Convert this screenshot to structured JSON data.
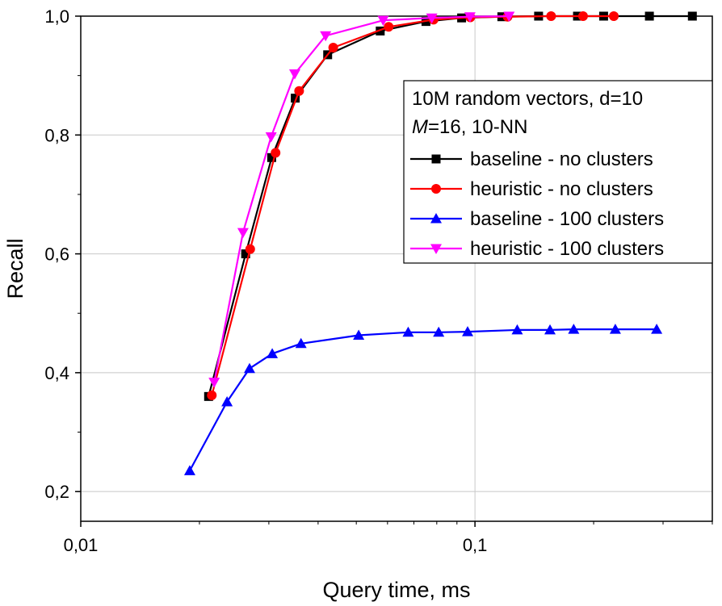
{
  "chart_data": {
    "type": "line",
    "xlabel": "Query time, ms",
    "ylabel": "Recall",
    "x_scale": "log",
    "xlim": [
      0.01,
      0.4
    ],
    "ylim": [
      0.15,
      1.0
    ],
    "x_ticks": [
      {
        "value": 0.01,
        "label": "0,01"
      },
      {
        "value": 0.1,
        "label": "0,1"
      }
    ],
    "y_ticks": [
      {
        "value": 0.2,
        "label": "0,2"
      },
      {
        "value": 0.4,
        "label": "0,4"
      },
      {
        "value": 0.6,
        "label": "0,6"
      },
      {
        "value": 0.8,
        "label": "0,8"
      },
      {
        "value": 1.0,
        "label": "1,0"
      }
    ],
    "grid": true,
    "legend": {
      "placement": "right",
      "header_line1": "10M random vectors, d=10",
      "header_line2_italic": "M",
      "header_line2_rest": "=16, 10-NN"
    },
    "series": [
      {
        "name": "baseline - no clusters",
        "color": "#000000",
        "marker": "square",
        "points": [
          [
            0.0211,
            0.36
          ],
          [
            0.0262,
            0.6
          ],
          [
            0.0305,
            0.762
          ],
          [
            0.035,
            0.862
          ],
          [
            0.0423,
            0.935
          ],
          [
            0.0575,
            0.975
          ],
          [
            0.0751,
            0.991
          ],
          [
            0.0925,
            0.997
          ],
          [
            0.117,
            0.999
          ],
          [
            0.145,
            1.0
          ],
          [
            0.182,
            1.0
          ],
          [
            0.212,
            1.0
          ],
          [
            0.277,
            1.0
          ],
          [
            0.356,
            1.0
          ]
        ]
      },
      {
        "name": "heuristic - no clusters",
        "color": "#ff0000",
        "marker": "circle",
        "points": [
          [
            0.0215,
            0.362
          ],
          [
            0.0269,
            0.608
          ],
          [
            0.0312,
            0.77
          ],
          [
            0.0358,
            0.874
          ],
          [
            0.0437,
            0.947
          ],
          [
            0.0604,
            0.982
          ],
          [
            0.0785,
            0.994
          ],
          [
            0.0973,
            0.998
          ],
          [
            0.121,
            0.999
          ],
          [
            0.156,
            1.0
          ],
          [
            0.188,
            1.0
          ],
          [
            0.225,
            1.0
          ]
        ]
      },
      {
        "name": "baseline - 100 clusters",
        "color": "#0000ff",
        "marker": "triangle-up",
        "points": [
          [
            0.0189,
            0.235
          ],
          [
            0.0235,
            0.351
          ],
          [
            0.0268,
            0.407
          ],
          [
            0.0306,
            0.432
          ],
          [
            0.0362,
            0.449
          ],
          [
            0.0507,
            0.463
          ],
          [
            0.0677,
            0.468
          ],
          [
            0.0809,
            0.468
          ],
          [
            0.0958,
            0.469
          ],
          [
            0.128,
            0.472
          ],
          [
            0.155,
            0.472
          ],
          [
            0.178,
            0.473
          ],
          [
            0.227,
            0.473
          ],
          [
            0.289,
            0.473
          ]
        ]
      },
      {
        "name": "heuristic - 100 clusters",
        "color": "#ff00ff",
        "marker": "triangle-down",
        "points": [
          [
            0.0218,
            0.384
          ],
          [
            0.0258,
            0.636
          ],
          [
            0.0304,
            0.797
          ],
          [
            0.0349,
            0.903
          ],
          [
            0.0418,
            0.967
          ],
          [
            0.0585,
            0.993
          ],
          [
            0.0777,
            0.997
          ],
          [
            0.0971,
            0.999
          ],
          [
            0.122,
            1.0
          ]
        ]
      }
    ]
  }
}
